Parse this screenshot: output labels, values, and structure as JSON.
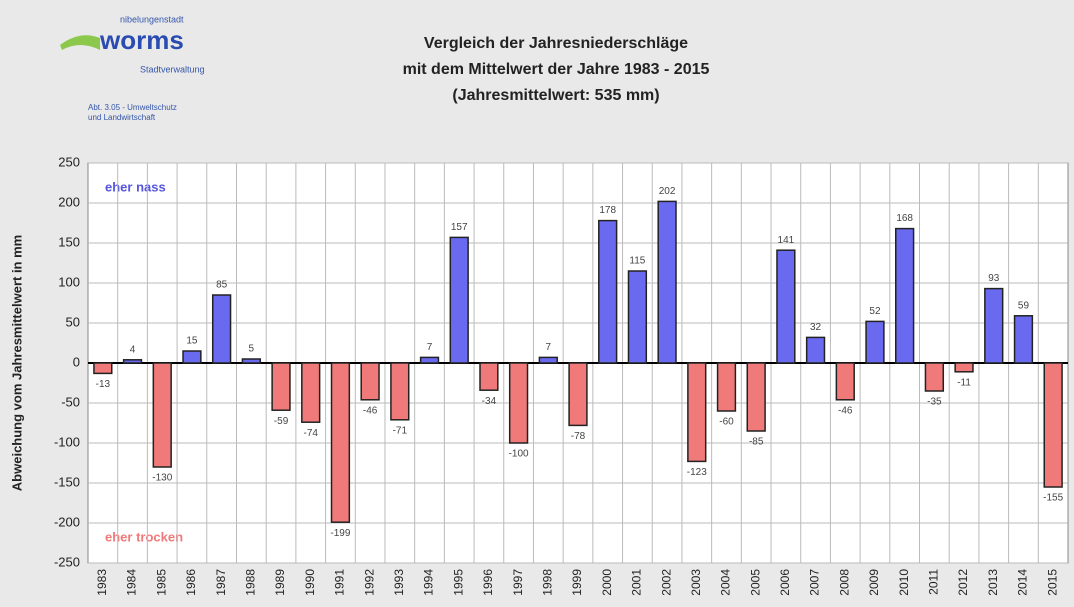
{
  "header": {
    "city_prefix": "nibelungenstadt",
    "city": "worms",
    "department": "Stadtverwaltung",
    "office": [
      "Abt. 3.05 - Umweltschutz",
      "und Landwirtschaft"
    ]
  },
  "chart_data": {
    "type": "bar",
    "title": [
      "Vergleich der Jahresniederschläge",
      "mit dem Mittelwert der Jahre 1983 - 2015",
      "(Jahresmittelwert: 535 mm)"
    ],
    "y_label": "Abweichung vom Jahresmittelwert in mm",
    "annotations": [
      "eher nass",
      "eher trocken"
    ],
    "categories": [
      "1983",
      "1984",
      "1985",
      "1986",
      "1987",
      "1988",
      "1989",
      "1990",
      "1991",
      "1992",
      "1993",
      "1994",
      "1995",
      "1996",
      "1997",
      "1998",
      "1999",
      "2000",
      "2001",
      "2002",
      "2003",
      "2004",
      "2005",
      "2006",
      "2007",
      "2008",
      "2009",
      "2010",
      "2011",
      "2012",
      "2013",
      "2014",
      "2015"
    ],
    "values": [
      -13,
      4,
      -130,
      15,
      85,
      5,
      -59,
      -74,
      -199,
      -46,
      -71,
      7,
      157,
      -34,
      -100,
      7,
      -78,
      178,
      115,
      202,
      -123,
      -60,
      -85,
      141,
      32,
      -46,
      52,
      168,
      -35,
      -11,
      93,
      59,
      -155
    ],
    "positive_color": "#6a6af0",
    "negative_color": "#f07a7a",
    "ylim": [
      -250,
      250
    ],
    "yticks": [
      -250,
      -200,
      -150,
      -100,
      -50,
      0,
      50,
      100,
      150,
      200,
      250
    ],
    "grid": true
  }
}
